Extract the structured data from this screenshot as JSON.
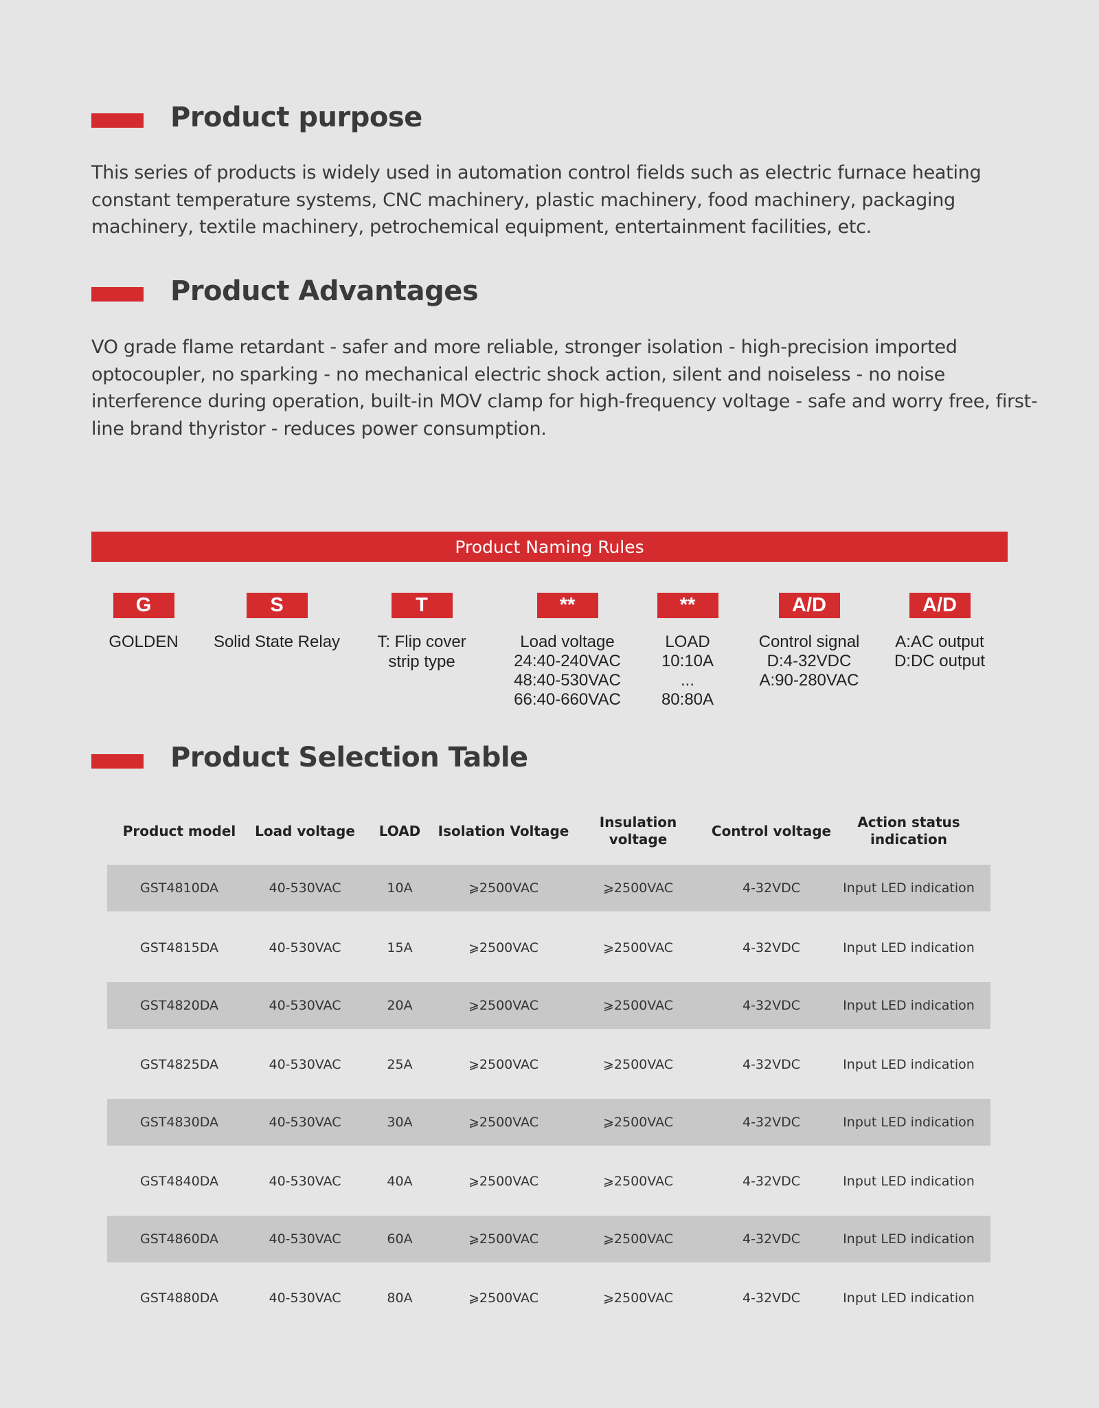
{
  "sections": {
    "purpose": {
      "title": "Product purpose",
      "text": "This series of products is widely used in automation control fields such as electric furnace heating constant temperature systems, CNC machinery, plastic machinery, food machinery, packaging machinery, textile machinery, petrochemical equipment, entertainment facilities, etc."
    },
    "advantages": {
      "title": "Product Advantages",
      "text": "VO grade flame retardant - safer and more reliable, stronger isolation - high-precision imported optocoupler, no sparking - no mechanical electric shock action, silent and noiseless - no noise interference during operation, built-in MOV clamp for high-frequency voltage - safe and worry free, first-line brand thyristor - reduces power consumption."
    },
    "selection": {
      "title": "Product Selection Table"
    }
  },
  "naming": {
    "banner": "Product Naming Rules",
    "codes": [
      {
        "code": "G",
        "label": "GOLDEN",
        "sub": []
      },
      {
        "code": "S",
        "label": "Solid State Relay",
        "sub": []
      },
      {
        "code": "T",
        "label": "T: Flip cover strip type",
        "sub": []
      },
      {
        "code": "**",
        "label": "Load voltage",
        "sub": [
          "24:40-240VAC",
          "48:40-530VAC",
          "66:40-660VAC"
        ]
      },
      {
        "code": "**",
        "label": "LOAD",
        "sub": [
          "10:10A",
          "...",
          "80:80A"
        ]
      },
      {
        "code": "A/D",
        "label": "Control signal",
        "sub": [
          "D:4-32VDC",
          "A:90-280VAC"
        ]
      },
      {
        "code": "A/D",
        "label": "A:AC output",
        "sub": [
          "D:DC output"
        ]
      }
    ]
  },
  "table": {
    "headers": [
      "Product model",
      "Load voltage",
      "LOAD",
      "Isolation Voltage",
      "Insulation voltage",
      "Control voltage",
      "Action status indication"
    ],
    "rows": [
      [
        "GST4810DA",
        "40-530VAC",
        "10A",
        "⩾2500VAC",
        "⩾2500VAC",
        "4-32VDC",
        "Input LED indication"
      ],
      [
        "GST4815DA",
        "40-530VAC",
        "15A",
        "⩾2500VAC",
        "⩾2500VAC",
        "4-32VDC",
        "Input LED indication"
      ],
      [
        "GST4820DA",
        "40-530VAC",
        "20A",
        "⩾2500VAC",
        "⩾2500VAC",
        "4-32VDC",
        "Input LED indication"
      ],
      [
        "GST4825DA",
        "40-530VAC",
        "25A",
        "⩾2500VAC",
        "⩾2500VAC",
        "4-32VDC",
        "Input LED indication"
      ],
      [
        "GST4830DA",
        "40-530VAC",
        "30A",
        "⩾2500VAC",
        "⩾2500VAC",
        "4-32VDC",
        "Input LED indication"
      ],
      [
        "GST4840DA",
        "40-530VAC",
        "40A",
        "⩾2500VAC",
        "⩾2500VAC",
        "4-32VDC",
        "Input LED indication"
      ],
      [
        "GST4860DA",
        "40-530VAC",
        "60A",
        "⩾2500VAC",
        "⩾2500VAC",
        "4-32VDC",
        "Input LED indication"
      ],
      [
        "GST4880DA",
        "40-530VAC",
        "80A",
        "⩾2500VAC",
        "⩾2500VAC",
        "4-32VDC",
        "Input LED indication"
      ]
    ]
  },
  "colors": {
    "accent": "#d42b2f",
    "background": "#e5e5e5",
    "row_band": "#c8c8c8"
  }
}
